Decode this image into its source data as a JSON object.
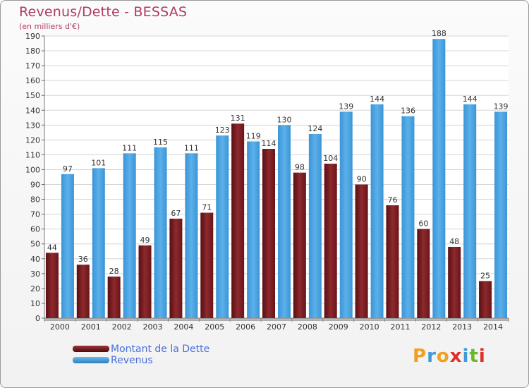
{
  "chart_data": {
    "type": "bar",
    "title": "Revenus/Dette - BESSAS",
    "subtitle": "(en milliers d'€)",
    "categories": [
      "2000",
      "2001",
      "2002",
      "2003",
      "2004",
      "2005",
      "2006",
      "2007",
      "2008",
      "2009",
      "2010",
      "2011",
      "2012",
      "2013",
      "2014"
    ],
    "series": [
      {
        "name": "Montant de la Dette",
        "color": "#7a1e22",
        "values": [
          44,
          36,
          28,
          49,
          67,
          71,
          131,
          114,
          98,
          104,
          90,
          76,
          60,
          48,
          25
        ]
      },
      {
        "name": "Revenus",
        "color": "#3f9ad8",
        "values": [
          97,
          101,
          111,
          115,
          111,
          123,
          119,
          130,
          124,
          139,
          144,
          136,
          188,
          144,
          139
        ]
      }
    ],
    "ylim": [
      0,
      190
    ],
    "yticks": [
      0,
      10,
      20,
      30,
      40,
      50,
      60,
      70,
      80,
      90,
      100,
      110,
      120,
      130,
      140,
      150,
      160,
      170,
      180,
      190
    ],
    "grid": true,
    "legend_position": "bottom-left"
  },
  "logo": {
    "text": "Proxiti",
    "letters": [
      {
        "ch": "P",
        "color": "#f0a020"
      },
      {
        "ch": "r",
        "color": "#3f9ad8"
      },
      {
        "ch": "o",
        "color": "#f0a020"
      },
      {
        "ch": "x",
        "color": "#e0302a"
      },
      {
        "ch": "i",
        "color": "#3f9ad8"
      },
      {
        "ch": "t",
        "color": "#6ab82a"
      },
      {
        "ch": "i",
        "color": "#e0302a"
      }
    ]
  }
}
